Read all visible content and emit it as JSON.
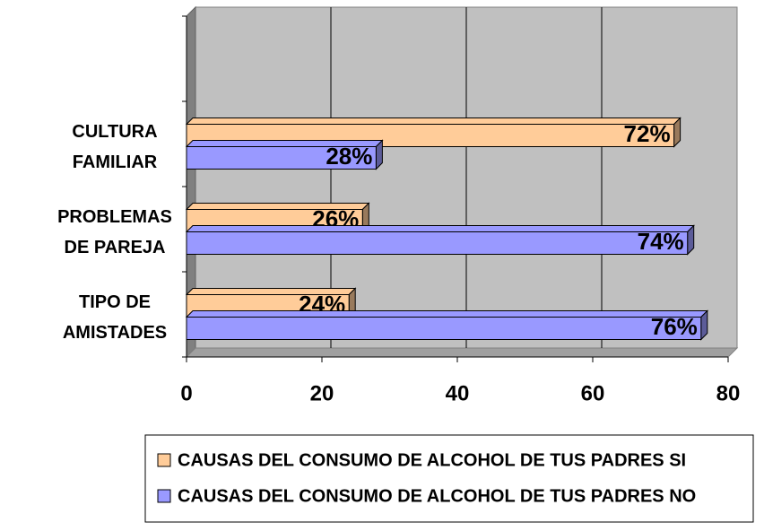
{
  "chart_data": {
    "type": "bar",
    "orientation": "horizontal",
    "categories": [
      "TIPO DE AMISTADES",
      "PROBLEMAS DE PAREJA",
      "CULTURA FAMILIAR",
      null
    ],
    "series": [
      {
        "name": "CAUSAS DEL CONSUMO DE ALCOHOL DE TUS PADRES SI",
        "color": "#ffcc99",
        "values": [
          24,
          26,
          72,
          null
        ],
        "value_labels": [
          "24%",
          "26%",
          "72%",
          null
        ]
      },
      {
        "name": "CAUSAS DEL CONSUMO DE ALCOHOL DE TUS PADRES NO",
        "color": "#9999ff",
        "values": [
          76,
          74,
          28,
          null
        ],
        "value_labels": [
          "76%",
          "74%",
          "28%",
          null
        ]
      }
    ],
    "xlim": [
      0,
      80
    ],
    "xticks": [
      0,
      20,
      40,
      60,
      80
    ],
    "grid": true,
    "legend": "bottom"
  }
}
